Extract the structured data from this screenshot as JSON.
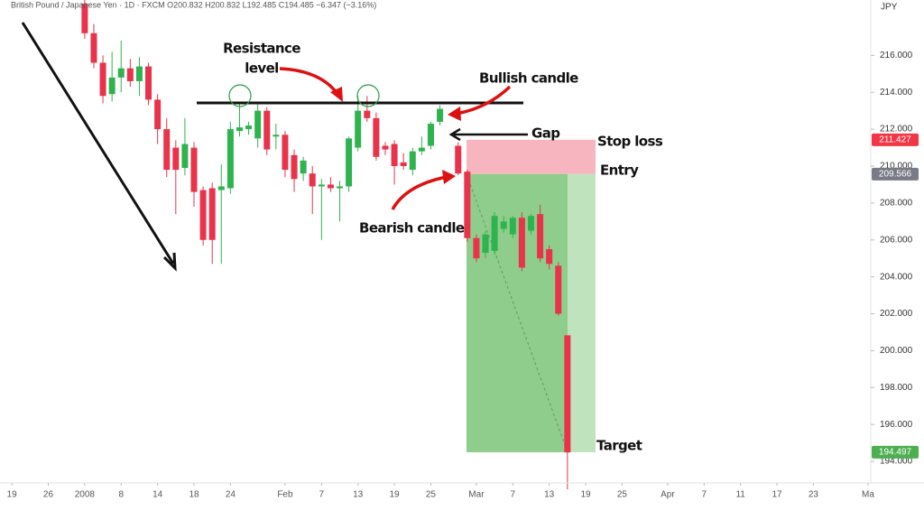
{
  "chart_data": {
    "type": "candlestick",
    "title": "British Pound / Japanese Yen · 1D · FXCM  O200.832 H200.832 L192.485 C194.485 −6.347 (−3.16%)",
    "currency": "JPY",
    "up_color": "#2fb34f",
    "down_color": "#e8334a",
    "x": [
      8,
      9,
      10,
      11,
      12,
      13,
      14,
      15,
      16,
      17,
      18,
      19,
      20,
      21,
      22,
      23,
      24,
      25,
      26,
      27,
      28,
      29,
      30,
      31,
      32,
      33,
      34,
      35,
      36,
      37,
      38,
      39,
      40,
      41,
      42,
      43,
      44,
      45,
      46,
      47,
      49,
      50,
      51,
      52,
      53,
      54,
      55,
      56,
      57,
      58,
      59,
      60,
      61
    ],
    "open": [
      218.8,
      217.2,
      215.6,
      213.9,
      214.8,
      215.3,
      214.6,
      215.4,
      213.6,
      212.0,
      211.0,
      209.9,
      211.0,
      208.7,
      208.8,
      208.7,
      208.8,
      211.9,
      212.0,
      211.5,
      213.0,
      211.6,
      211.7,
      210.6,
      209.6,
      209.6,
      208.9,
      209.0,
      208.8,
      208.9,
      211.0,
      213.0,
      212.6,
      211.1,
      211.2,
      210.2,
      209.8,
      210.8,
      211.1,
      212.4,
      211.1,
      209.7,
      206.1,
      205.3,
      205.4,
      206.6,
      206.3,
      207.2,
      206.5,
      207.4,
      205.5,
      204.6,
      200.832
    ],
    "high": [
      219.4,
      217.7,
      216.0,
      216.2,
      216.8,
      215.8,
      215.9,
      215.6,
      213.9,
      212.6,
      211.4,
      212.6,
      211.3,
      208.9,
      209.1,
      210.1,
      212.4,
      213.5,
      212.4,
      213.4,
      213.2,
      212.3,
      211.9,
      210.9,
      210.5,
      210.0,
      209.3,
      209.4,
      209.2,
      211.6,
      213.8,
      213.8,
      212.9,
      211.3,
      211.4,
      210.7,
      211.0,
      211.6,
      212.4,
      213.3,
      211.3,
      209.8,
      206.3,
      206.5,
      207.5,
      207.3,
      207.3,
      207.5,
      207.4,
      207.9,
      205.7,
      204.8,
      200.832
    ],
    "low": [
      216.9,
      215.3,
      213.4,
      213.5,
      214.0,
      214.3,
      213.8,
      213.3,
      211.2,
      209.4,
      207.4,
      209.5,
      207.8,
      205.7,
      204.7,
      204.7,
      208.5,
      211.6,
      211.7,
      211.0,
      210.6,
      210.9,
      209.4,
      208.6,
      209.2,
      207.4,
      206.0,
      208.6,
      207.0,
      208.6,
      210.8,
      212.4,
      210.3,
      210.6,
      209.0,
      209.8,
      209.5,
      210.6,
      210.9,
      212.2,
      209.5,
      205.9,
      204.8,
      205.0,
      205.2,
      206.4,
      206.1,
      204.3,
      206.3,
      204.8,
      204.4,
      201.9,
      192.485
    ],
    "close": [
      217.2,
      215.6,
      213.8,
      214.8,
      215.3,
      214.6,
      215.4,
      213.6,
      212.0,
      209.8,
      209.8,
      211.2,
      208.6,
      206.0,
      206.0,
      208.9,
      212.0,
      212.1,
      212.2,
      213.0,
      210.9,
      211.7,
      209.8,
      209.3,
      210.3,
      208.9,
      209.0,
      208.8,
      208.9,
      211.5,
      213.0,
      212.6,
      210.5,
      210.9,
      210.0,
      210.0,
      210.8,
      211.0,
      212.3,
      213.1,
      209.6,
      206.1,
      205.0,
      206.3,
      207.3,
      207.0,
      207.2,
      204.5,
      207.3,
      205.0,
      204.7,
      202.0,
      194.485
    ],
    "xlim": [
      -1.3,
      94.3
    ],
    "xticks": [
      {
        "value": 0,
        "label": "19"
      },
      {
        "value": 4,
        "label": "26"
      },
      {
        "value": 8,
        "label": "2008"
      },
      {
        "value": 12,
        "label": "8"
      },
      {
        "value": 16,
        "label": "14"
      },
      {
        "value": 20,
        "label": "18"
      },
      {
        "value": 24,
        "label": "24"
      },
      {
        "value": 30,
        "label": "Feb"
      },
      {
        "value": 34,
        "label": "7"
      },
      {
        "value": 38,
        "label": "13"
      },
      {
        "value": 42,
        "label": "19"
      },
      {
        "value": 46,
        "label": "25"
      },
      {
        "value": 51,
        "label": "Mar"
      },
      {
        "value": 55,
        "label": "7"
      },
      {
        "value": 59,
        "label": "13"
      },
      {
        "value": 63,
        "label": "19"
      },
      {
        "value": 67,
        "label": "25"
      },
      {
        "value": 72,
        "label": "Apr"
      },
      {
        "value": 76,
        "label": "7"
      },
      {
        "value": 80,
        "label": "11"
      },
      {
        "value": 84,
        "label": "17"
      },
      {
        "value": 88,
        "label": "23"
      },
      {
        "value": 94,
        "label": "Ma"
      }
    ],
    "ylim": [
      192.83,
      219
    ],
    "yticks": [
      {
        "value": 194,
        "label": "194.000"
      },
      {
        "value": 196,
        "label": "196.000"
      },
      {
        "value": 198,
        "label": "198.000"
      },
      {
        "value": 200,
        "label": "200.000"
      },
      {
        "value": 202,
        "label": "202.000"
      },
      {
        "value": 204,
        "label": "204.000"
      },
      {
        "value": 206,
        "label": "206.000"
      },
      {
        "value": 208,
        "label": "208.000"
      },
      {
        "value": 210,
        "label": "210.000"
      },
      {
        "value": 212,
        "label": "212.000"
      },
      {
        "value": 214,
        "label": "214.000"
      },
      {
        "value": 216,
        "label": "216.000"
      }
    ],
    "position": {
      "stop_loss": 211.427,
      "entry": 209.566,
      "target": 194.497,
      "stop_color": "#f23645",
      "entry_color": "#787b86",
      "target_color": "#4caf50"
    },
    "annotations": {
      "resistance": [
        "Resistance",
        "level"
      ],
      "bullish": "Bullish candle",
      "gap": "Gap",
      "stop_loss": "Stop loss",
      "entry": "Entry",
      "bearish": "Bearish candle",
      "target": "Target"
    }
  }
}
